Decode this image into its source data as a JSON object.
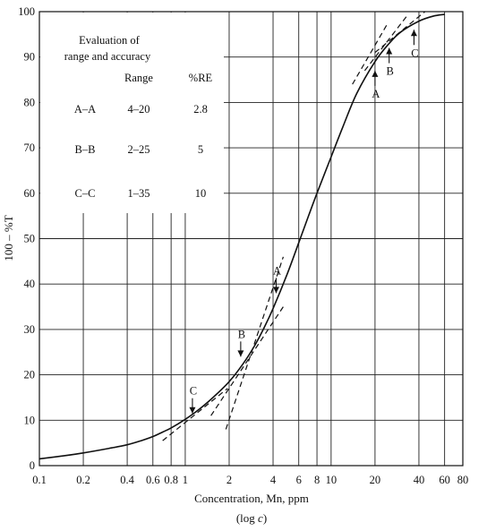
{
  "chart_data": {
    "type": "line",
    "x_scale": "log",
    "xlim": [
      0.1,
      80
    ],
    "ylim": [
      0,
      100
    ],
    "grid": true,
    "xlabel": "Concentration, Mn, ppm",
    "xlabel_sub": "(log c)",
    "ylabel": "100 – %T",
    "x_ticks": [
      {
        "value": 0.1,
        "label": "0.1"
      },
      {
        "value": 0.2,
        "label": "0.2"
      },
      {
        "value": 0.4,
        "label": "0.4"
      },
      {
        "value": 0.6,
        "label": "0.6"
      },
      {
        "value": 0.8,
        "label": "0.8"
      },
      {
        "value": 1,
        "label": "1"
      },
      {
        "value": 2,
        "label": "2"
      },
      {
        "value": 4,
        "label": "4"
      },
      {
        "value": 6,
        "label": "6"
      },
      {
        "value": 8,
        "label": "8"
      },
      {
        "value": 10,
        "label": "10"
      },
      {
        "value": 20,
        "label": "20"
      },
      {
        "value": 40,
        "label": "40"
      },
      {
        "value": 60,
        "label": "60"
      },
      {
        "value": 80,
        "label": "80"
      }
    ],
    "y_ticks": [
      {
        "value": 0,
        "label": "0"
      },
      {
        "value": 10,
        "label": "10"
      },
      {
        "value": 20,
        "label": "20"
      },
      {
        "value": 30,
        "label": "30"
      },
      {
        "value": 40,
        "label": "40"
      },
      {
        "value": 50,
        "label": "50"
      },
      {
        "value": 60,
        "label": "60"
      },
      {
        "value": 70,
        "label": "70"
      },
      {
        "value": 80,
        "label": "80"
      },
      {
        "value": 90,
        "label": "90"
      },
      {
        "value": 100,
        "label": "100"
      }
    ],
    "series": [
      {
        "style": "solid",
        "x": [
          0.1,
          0.15,
          0.2,
          0.3,
          0.4,
          0.5,
          0.6,
          0.7,
          0.8,
          1.0,
          1.2,
          1.5,
          2.0,
          2.5,
          3.0,
          3.5,
          4.0,
          5.0,
          6.0,
          7.0,
          8.0,
          10,
          12,
          15,
          20,
          25,
          30,
          40,
          50,
          60
        ],
        "y": [
          1.5,
          2.2,
          2.8,
          3.8,
          4.6,
          5.5,
          6.4,
          7.4,
          8.3,
          10.2,
          12.0,
          14.6,
          18.5,
          22.5,
          26.5,
          30.6,
          34.6,
          42.2,
          49.1,
          55.0,
          60.0,
          68.0,
          74.5,
          82.0,
          89.0,
          93.0,
          95.5,
          97.9,
          99.0,
          99.4
        ]
      }
    ],
    "tangents": [
      {
        "label": "A",
        "x": [
          1.9,
          4.7
        ],
        "y": [
          8,
          46
        ]
      },
      {
        "label": "B",
        "x": [
          1.5,
          4.7
        ],
        "y": [
          11,
          35
        ]
      },
      {
        "label": "C",
        "x": [
          0.7,
          1.95
        ],
        "y": [
          5.5,
          17
        ]
      },
      {
        "label": "A",
        "x": [
          14.0,
          24.0
        ],
        "y": [
          84,
          97
        ]
      },
      {
        "label": "B",
        "x": [
          17.0,
          33.0
        ],
        "y": [
          87,
          99
        ]
      },
      {
        "label": "C",
        "x": [
          20.0,
          44.0
        ],
        "y": [
          91,
          100
        ]
      }
    ],
    "annotations": [
      {
        "label": "A",
        "x": 4.2,
        "y": 38,
        "arrow": "down"
      },
      {
        "label": "B",
        "x": 2.4,
        "y": 24,
        "arrow": "down"
      },
      {
        "label": "C",
        "x": 1.12,
        "y": 11.5,
        "arrow": "down"
      },
      {
        "label": "A",
        "x": 20,
        "y": 87,
        "arrow": "up"
      },
      {
        "label": "B",
        "x": 25,
        "y": 92,
        "arrow": "up"
      },
      {
        "label": "C",
        "x": 37,
        "y": 96,
        "arrow": "up"
      }
    ],
    "legend": {
      "title": [
        "Evaluation of",
        "range and accuracy"
      ],
      "columns": [
        "",
        "Range",
        "%RE"
      ],
      "rows": [
        [
          "A–A",
          "4–20",
          "2.8"
        ],
        [
          "B–B",
          "2–25",
          "5"
        ],
        [
          "C–C",
          "1–35",
          "10"
        ]
      ]
    }
  }
}
